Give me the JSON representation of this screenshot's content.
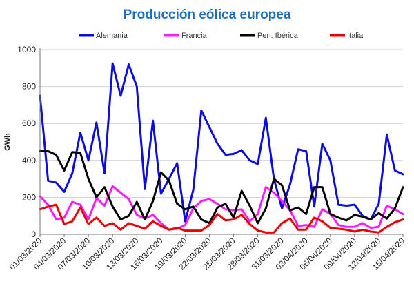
{
  "chart_data": {
    "type": "line",
    "title": "Producción eólica europea",
    "ylabel": "GWh",
    "xlabel": "",
    "ylim": [
      0,
      1000
    ],
    "yticks": [
      0,
      200,
      400,
      600,
      800,
      1000
    ],
    "grid": "horizontal",
    "legend_position": "top",
    "x": [
      "01/03/2020",
      "02/03/2020",
      "03/03/2020",
      "04/03/2020",
      "05/03/2020",
      "06/03/2020",
      "07/03/2020",
      "08/03/2020",
      "09/03/2020",
      "10/03/2020",
      "11/03/2020",
      "12/03/2020",
      "13/03/2020",
      "14/03/2020",
      "15/03/2020",
      "16/03/2020",
      "17/03/2020",
      "18/03/2020",
      "19/03/2020",
      "20/03/2020",
      "21/03/2020",
      "22/03/2020",
      "23/03/2020",
      "24/03/2020",
      "25/03/2020",
      "26/03/2020",
      "27/03/2020",
      "28/03/2020",
      "29/03/2020",
      "30/03/2020",
      "31/03/2020",
      "01/04/2020",
      "02/04/2020",
      "03/04/2020",
      "04/04/2020",
      "05/04/2020",
      "06/04/2020",
      "07/04/2020",
      "08/04/2020",
      "09/04/2020",
      "10/04/2020",
      "11/04/2020",
      "12/04/2020",
      "13/04/2020",
      "14/04/2020",
      "15/04/2020"
    ],
    "xtick_labels": [
      "01/03/2020",
      "04/03/2020",
      "07/03/2020",
      "10/03/2020",
      "13/03/2020",
      "16/03/2020",
      "19/03/2020",
      "22/03/2020",
      "25/03/2020",
      "28/03/2020",
      "31/03/2020",
      "03/04/2020",
      "06/04/2020",
      "09/04/2020",
      "12/04/2020",
      "15/04/2020"
    ],
    "series": [
      {
        "name": "Alemania",
        "color": "#0d0de0",
        "values": [
          750,
          290,
          280,
          230,
          330,
          550,
          400,
          605,
          330,
          925,
          750,
          920,
          800,
          245,
          615,
          220,
          300,
          385,
          70,
          240,
          670,
          580,
          490,
          430,
          435,
          455,
          400,
          380,
          630,
          300,
          140,
          270,
          460,
          450,
          150,
          490,
          400,
          160,
          155,
          160,
          100,
          80,
          165,
          540,
          345,
          325
        ]
      },
      {
        "name": "Francia",
        "color": "#ff1aff",
        "values": [
          205,
          160,
          80,
          90,
          175,
          160,
          80,
          195,
          155,
          260,
          225,
          190,
          105,
          85,
          105,
          60,
          25,
          30,
          50,
          140,
          180,
          190,
          165,
          135,
          130,
          135,
          70,
          110,
          255,
          225,
          180,
          130,
          45,
          50,
          40,
          135,
          110,
          50,
          40,
          40,
          60,
          35,
          40,
          155,
          135,
          110
        ]
      },
      {
        "name": "Pen. Ibérica",
        "color": "#000000",
        "values": [
          450,
          450,
          430,
          345,
          445,
          440,
          300,
          200,
          255,
          150,
          80,
          100,
          175,
          80,
          180,
          335,
          290,
          165,
          135,
          150,
          80,
          60,
          145,
          165,
          90,
          235,
          155,
          60,
          140,
          300,
          265,
          130,
          145,
          110,
          255,
          255,
          110,
          90,
          75,
          105,
          95,
          80,
          115,
          85,
          140,
          255
        ]
      },
      {
        "name": "Italia",
        "color": "#ee0000",
        "values": [
          135,
          150,
          160,
          55,
          70,
          145,
          55,
          90,
          45,
          60,
          25,
          60,
          45,
          30,
          70,
          45,
          25,
          35,
          20,
          20,
          20,
          50,
          110,
          75,
          80,
          105,
          55,
          20,
          10,
          10,
          60,
          85,
          25,
          25,
          90,
          70,
          35,
          30,
          25,
          15,
          25,
          15,
          10,
          40,
          65,
          80
        ]
      }
    ]
  }
}
